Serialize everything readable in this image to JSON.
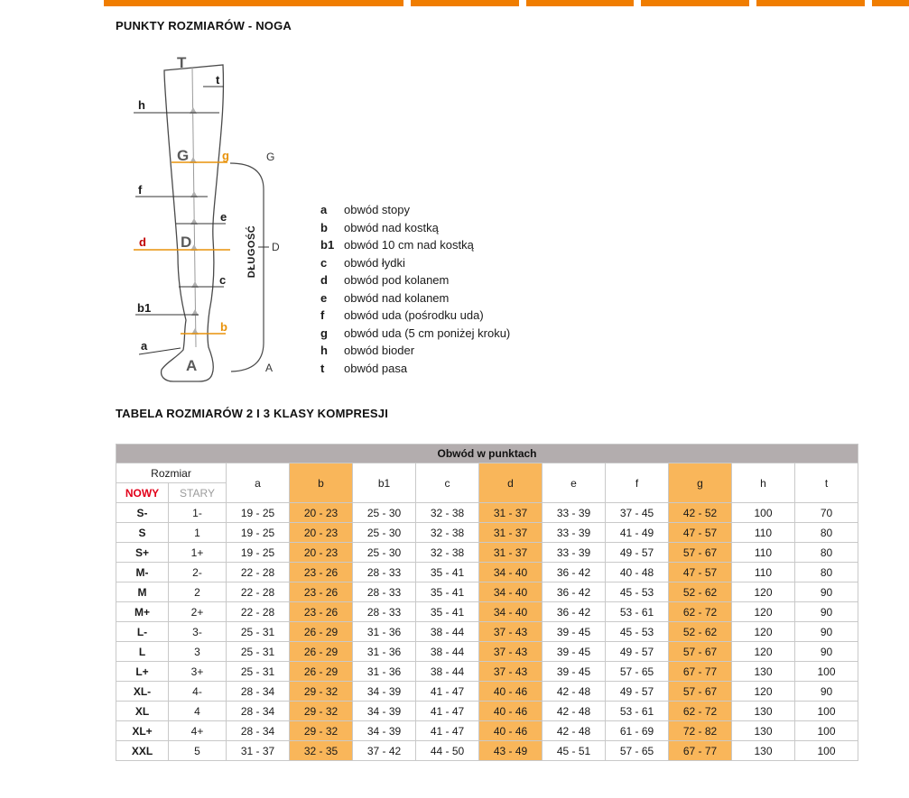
{
  "topbar": {
    "segments": 6
  },
  "section_points": {
    "title": "PUNKTY ROZMIARÓW - NOGA"
  },
  "section_table": {
    "title": "TABELA ROZMIARÓW 2 I 3 KLASY KOMPRESJI"
  },
  "diagram": {
    "length_label": "DŁUGOŚĆ",
    "labels": {
      "T": "T",
      "t": "t",
      "h": "h",
      "G": "G",
      "g": "g",
      "f": "f",
      "e": "e",
      "D": "D",
      "d": "d",
      "c": "c",
      "b1": "b1",
      "b": "b",
      "a": "a",
      "A": "A"
    },
    "bracket_labels": [
      "G",
      "D",
      "A"
    ]
  },
  "legend": {
    "items": [
      {
        "key": "a",
        "text": "obwód stopy"
      },
      {
        "key": "b",
        "text": "obwód nad kostką"
      },
      {
        "key": "b1",
        "text": "obwód 10 cm nad kostką"
      },
      {
        "key": "c",
        "text": "obwód łydki"
      },
      {
        "key": "d",
        "text": "obwód pod kolanem"
      },
      {
        "key": "e",
        "text": "obwód nad kolanem"
      },
      {
        "key": "f",
        "text": "obwód uda (pośrodku uda)"
      },
      {
        "key": "g",
        "text": "obwód uda (5 cm poniżej kroku)"
      },
      {
        "key": "h",
        "text": "obwód bioder"
      },
      {
        "key": "t",
        "text": "obwód pasa"
      }
    ]
  },
  "table": {
    "title": "Obwód w punktach",
    "rozmiar_label": "Rozmiar",
    "nowy_label": "NOWY",
    "stary_label": "STARY",
    "point_columns": [
      "a",
      "b",
      "b1",
      "c",
      "d",
      "e",
      "f",
      "g",
      "h",
      "t"
    ],
    "highlighted_columns": [
      "b",
      "d",
      "g"
    ],
    "rows": [
      {
        "nowy": "S-",
        "stary": "1-",
        "values": [
          "19 - 25",
          "20 - 23",
          "25 - 30",
          "32 - 38",
          "31 - 37",
          "33 - 39",
          "37 - 45",
          "42 - 52",
          "100",
          "70"
        ]
      },
      {
        "nowy": "S",
        "stary": "1",
        "values": [
          "19 - 25",
          "20 - 23",
          "25 - 30",
          "32 - 38",
          "31 - 37",
          "33 - 39",
          "41 - 49",
          "47 - 57",
          "110",
          "80"
        ]
      },
      {
        "nowy": "S+",
        "stary": "1+",
        "values": [
          "19 - 25",
          "20 - 23",
          "25 - 30",
          "32 - 38",
          "31 - 37",
          "33 - 39",
          "49 - 57",
          "57 - 67",
          "110",
          "80"
        ]
      },
      {
        "nowy": "M-",
        "stary": "2-",
        "values": [
          "22 - 28",
          "23 - 26",
          "28 - 33",
          "35 - 41",
          "34 - 40",
          "36 - 42",
          "40 - 48",
          "47 - 57",
          "110",
          "80"
        ]
      },
      {
        "nowy": "M",
        "stary": "2",
        "values": [
          "22 - 28",
          "23 - 26",
          "28 - 33",
          "35 - 41",
          "34 - 40",
          "36 - 42",
          "45 - 53",
          "52 - 62",
          "120",
          "90"
        ]
      },
      {
        "nowy": "M+",
        "stary": "2+",
        "values": [
          "22 - 28",
          "23 - 26",
          "28 - 33",
          "35 - 41",
          "34 - 40",
          "36 - 42",
          "53 - 61",
          "62 - 72",
          "120",
          "90"
        ]
      },
      {
        "nowy": "L-",
        "stary": "3-",
        "values": [
          "25 - 31",
          "26 - 29",
          "31 - 36",
          "38 - 44",
          "37 - 43",
          "39 - 45",
          "45 - 53",
          "52 - 62",
          "120",
          "90"
        ]
      },
      {
        "nowy": "L",
        "stary": "3",
        "values": [
          "25 - 31",
          "26 - 29",
          "31 - 36",
          "38 - 44",
          "37 - 43",
          "39 - 45",
          "49 - 57",
          "57 - 67",
          "120",
          "90"
        ]
      },
      {
        "nowy": "L+",
        "stary": "3+",
        "values": [
          "25 - 31",
          "26 - 29",
          "31 - 36",
          "38 - 44",
          "37 - 43",
          "39 - 45",
          "57 - 65",
          "67 - 77",
          "130",
          "100"
        ]
      },
      {
        "nowy": "XL-",
        "stary": "4-",
        "values": [
          "28 - 34",
          "29 - 32",
          "34 - 39",
          "41 - 47",
          "40 - 46",
          "42 - 48",
          "49 - 57",
          "57 - 67",
          "120",
          "90"
        ]
      },
      {
        "nowy": "XL",
        "stary": "4",
        "values": [
          "28 - 34",
          "29 - 32",
          "34 - 39",
          "41 - 47",
          "40 - 46",
          "42 - 48",
          "53 - 61",
          "62 - 72",
          "130",
          "100"
        ]
      },
      {
        "nowy": "XL+",
        "stary": "4+",
        "values": [
          "28 - 34",
          "29 - 32",
          "34 - 39",
          "41 - 47",
          "40 - 46",
          "42 - 48",
          "61 - 69",
          "72 - 82",
          "130",
          "100"
        ]
      },
      {
        "nowy": "XXL",
        "stary": "5",
        "values": [
          "31 - 37",
          "32 - 35",
          "37 - 42",
          "44 - 50",
          "43 - 49",
          "45 - 51",
          "57 - 65",
          "67 - 77",
          "130",
          "100"
        ]
      }
    ]
  },
  "colors": {
    "orange": "#F07D00",
    "highlight": "#F9B65A",
    "title-bg": "#B3ADAE",
    "nowy-red": "#E2001A",
    "stary-gray": "#9C9C9C",
    "line-orange": "#E8920A",
    "d-red": "#C00000"
  }
}
